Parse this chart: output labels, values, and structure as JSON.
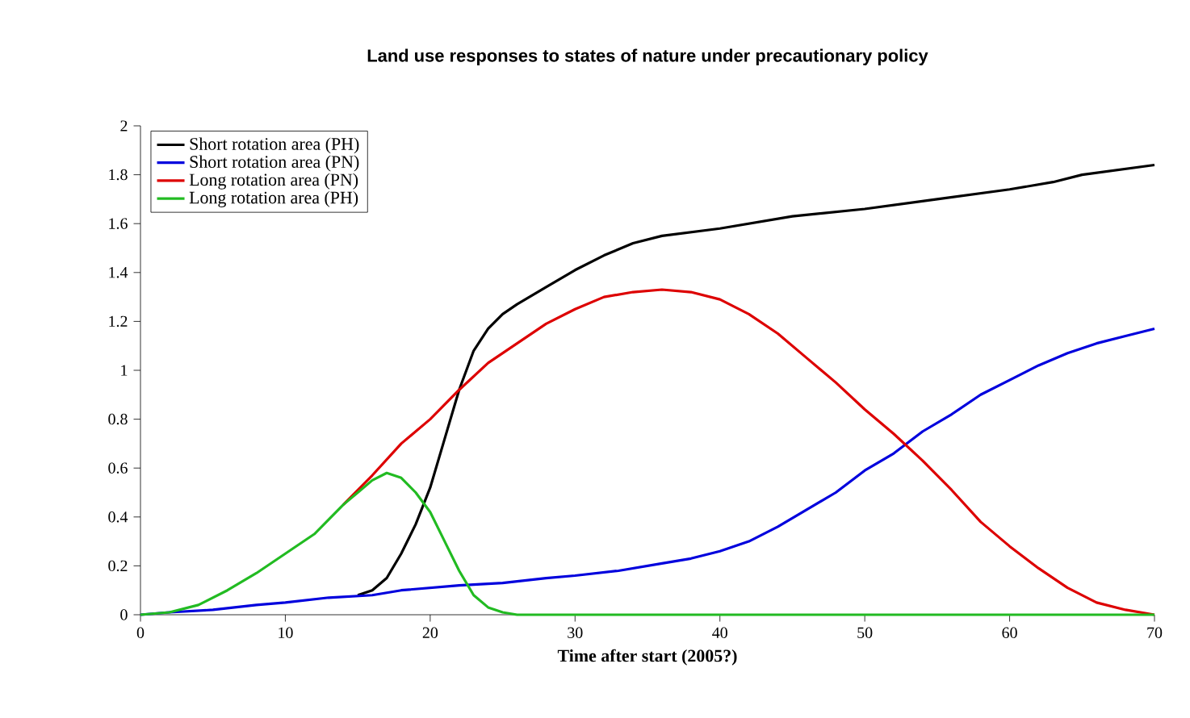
{
  "chart_data": {
    "type": "line",
    "title": "Land use responses to states of nature under precautionary policy",
    "xlabel": "Time after start (2005?)",
    "xlim": [
      0,
      70
    ],
    "ylim": [
      0,
      2
    ],
    "xticks": [
      0,
      10,
      20,
      30,
      40,
      50,
      60,
      70
    ],
    "yticks": [
      0,
      0.2,
      0.4,
      0.6,
      0.8,
      1,
      1.2,
      1.4,
      1.6,
      1.8,
      2
    ],
    "grid": false,
    "legend": "top left",
    "marker": "none",
    "line_style": "solid",
    "series": [
      {
        "name": "Short rotation area (PH)",
        "color": "#000000",
        "x": [
          15,
          16,
          17,
          18,
          19,
          20,
          21,
          22,
          23,
          24,
          25,
          26,
          28,
          30,
          32,
          34,
          36,
          40,
          45,
          50,
          55,
          60,
          63,
          65,
          70
        ],
        "values": [
          0.08,
          0.1,
          0.15,
          0.25,
          0.37,
          0.52,
          0.72,
          0.92,
          1.08,
          1.17,
          1.23,
          1.27,
          1.34,
          1.41,
          1.47,
          1.52,
          1.55,
          1.58,
          1.63,
          1.66,
          1.7,
          1.74,
          1.77,
          1.8,
          1.84
        ]
      },
      {
        "name": "Short rotation area (PN)",
        "color": "#0000dd",
        "x": [
          0,
          2,
          5,
          8,
          10,
          13,
          16,
          18,
          22,
          25,
          28,
          30,
          33,
          36,
          38,
          40,
          42,
          44,
          46,
          48,
          50,
          52,
          54,
          56,
          58,
          60,
          62,
          64,
          66,
          68,
          70
        ],
        "values": [
          0,
          0.01,
          0.02,
          0.04,
          0.05,
          0.07,
          0.08,
          0.1,
          0.12,
          0.13,
          0.15,
          0.16,
          0.18,
          0.21,
          0.23,
          0.26,
          0.3,
          0.36,
          0.43,
          0.5,
          0.59,
          0.66,
          0.75,
          0.82,
          0.9,
          0.96,
          1.02,
          1.07,
          1.11,
          1.14,
          1.17
        ]
      },
      {
        "name": "Long rotation area (PN)",
        "color": "#dd0000",
        "x": [
          14,
          16,
          18,
          20,
          22,
          24,
          26,
          28,
          30,
          32,
          34,
          36,
          38,
          40,
          42,
          44,
          46,
          48,
          50,
          52,
          54,
          56,
          58,
          60,
          62,
          64,
          66,
          68,
          70
        ],
        "values": [
          0.45,
          0.57,
          0.7,
          0.8,
          0.92,
          1.03,
          1.11,
          1.19,
          1.25,
          1.3,
          1.32,
          1.33,
          1.32,
          1.29,
          1.23,
          1.15,
          1.05,
          0.95,
          0.84,
          0.74,
          0.63,
          0.51,
          0.38,
          0.28,
          0.19,
          0.11,
          0.05,
          0.02,
          0
        ]
      },
      {
        "name": "Long rotation area (PH)",
        "color": "#22bb22",
        "x": [
          0,
          2,
          4,
          6,
          8,
          10,
          12,
          14,
          15,
          16,
          17,
          18,
          19,
          20,
          21,
          22,
          23,
          24,
          25,
          26,
          70
        ],
        "values": [
          0,
          0.01,
          0.04,
          0.1,
          0.17,
          0.25,
          0.33,
          0.45,
          0.5,
          0.55,
          0.58,
          0.56,
          0.5,
          0.42,
          0.3,
          0.18,
          0.08,
          0.03,
          0.01,
          0,
          0
        ]
      }
    ]
  }
}
